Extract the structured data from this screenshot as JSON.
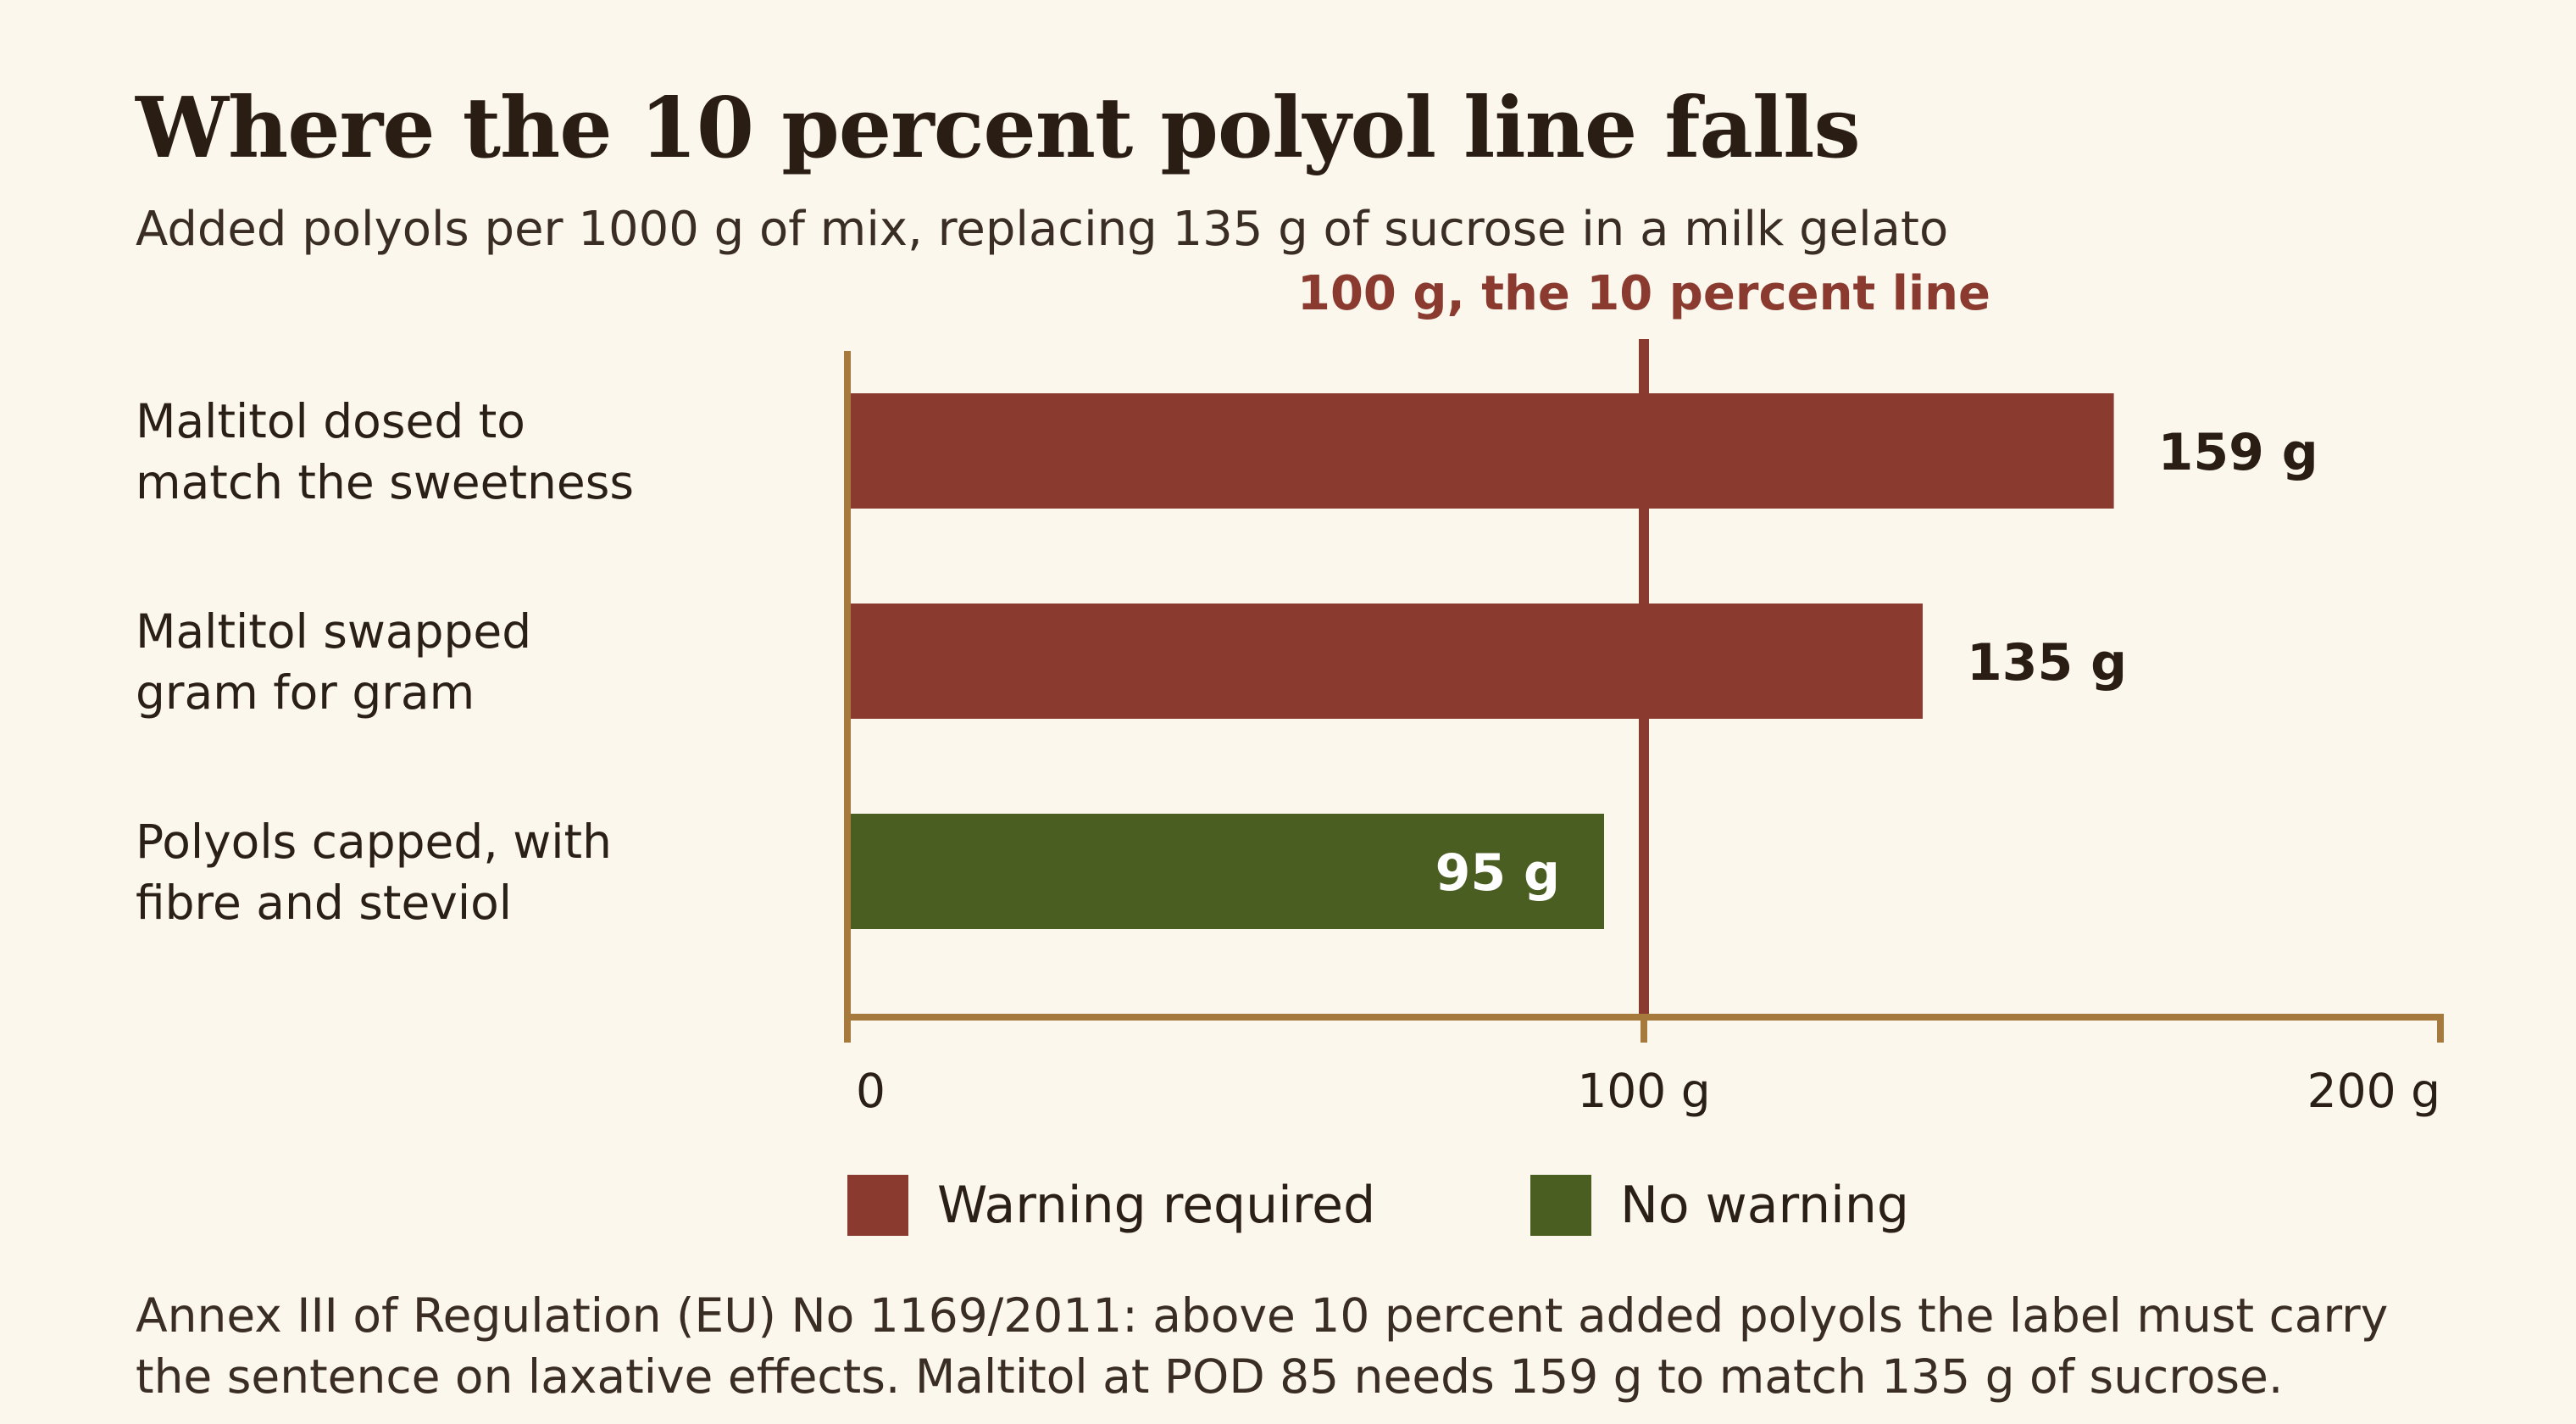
{
  "title": "Where the 10 percent polyol line falls",
  "subtitle": "Added polyols per 1000 g of mix, replacing 135 g of sucrose in a milk gelato",
  "colors": {
    "warning": "#8b3a2f",
    "no_warning": "#4a5e22",
    "axis": "#a57a3c",
    "reference_line": "#8b3a2f",
    "reference_label": "#8b3a2f",
    "background": "#fcf7ec",
    "text": "#2a2018"
  },
  "chart_data": {
    "type": "bar",
    "orientation": "horizontal",
    "categories": [
      [
        "Maltitol dosed to",
        "match the sweetness"
      ],
      [
        "Maltitol swapped",
        "gram for gram"
      ],
      [
        "Polyols capped, with",
        "fibre and steviol"
      ]
    ],
    "values": [
      159,
      135,
      95
    ],
    "value_labels": [
      "159 g",
      "135 g",
      "95 g"
    ],
    "bar_status": [
      "warning",
      "warning",
      "no_warning"
    ],
    "xlim": [
      0,
      200
    ],
    "x_ticks": [
      {
        "value": 0,
        "label": "0"
      },
      {
        "value": 100,
        "label": "100 g"
      },
      {
        "value": 200,
        "label": "200 g"
      }
    ],
    "reference_line": {
      "value": 100,
      "label": "100 g, the 10 percent line"
    },
    "legend": [
      {
        "key": "warning",
        "label": "Warning required"
      },
      {
        "key": "no_warning",
        "label": "No warning"
      }
    ],
    "legend_position": "bottom",
    "grid": false
  },
  "note": [
    "Annex III of Regulation (EU) No 1169/2011: above 10 percent added polyols the label must carry",
    "the sentence on laxative effects. Maltitol at POD 85 needs 159 g to match 135 g of sucrose."
  ]
}
